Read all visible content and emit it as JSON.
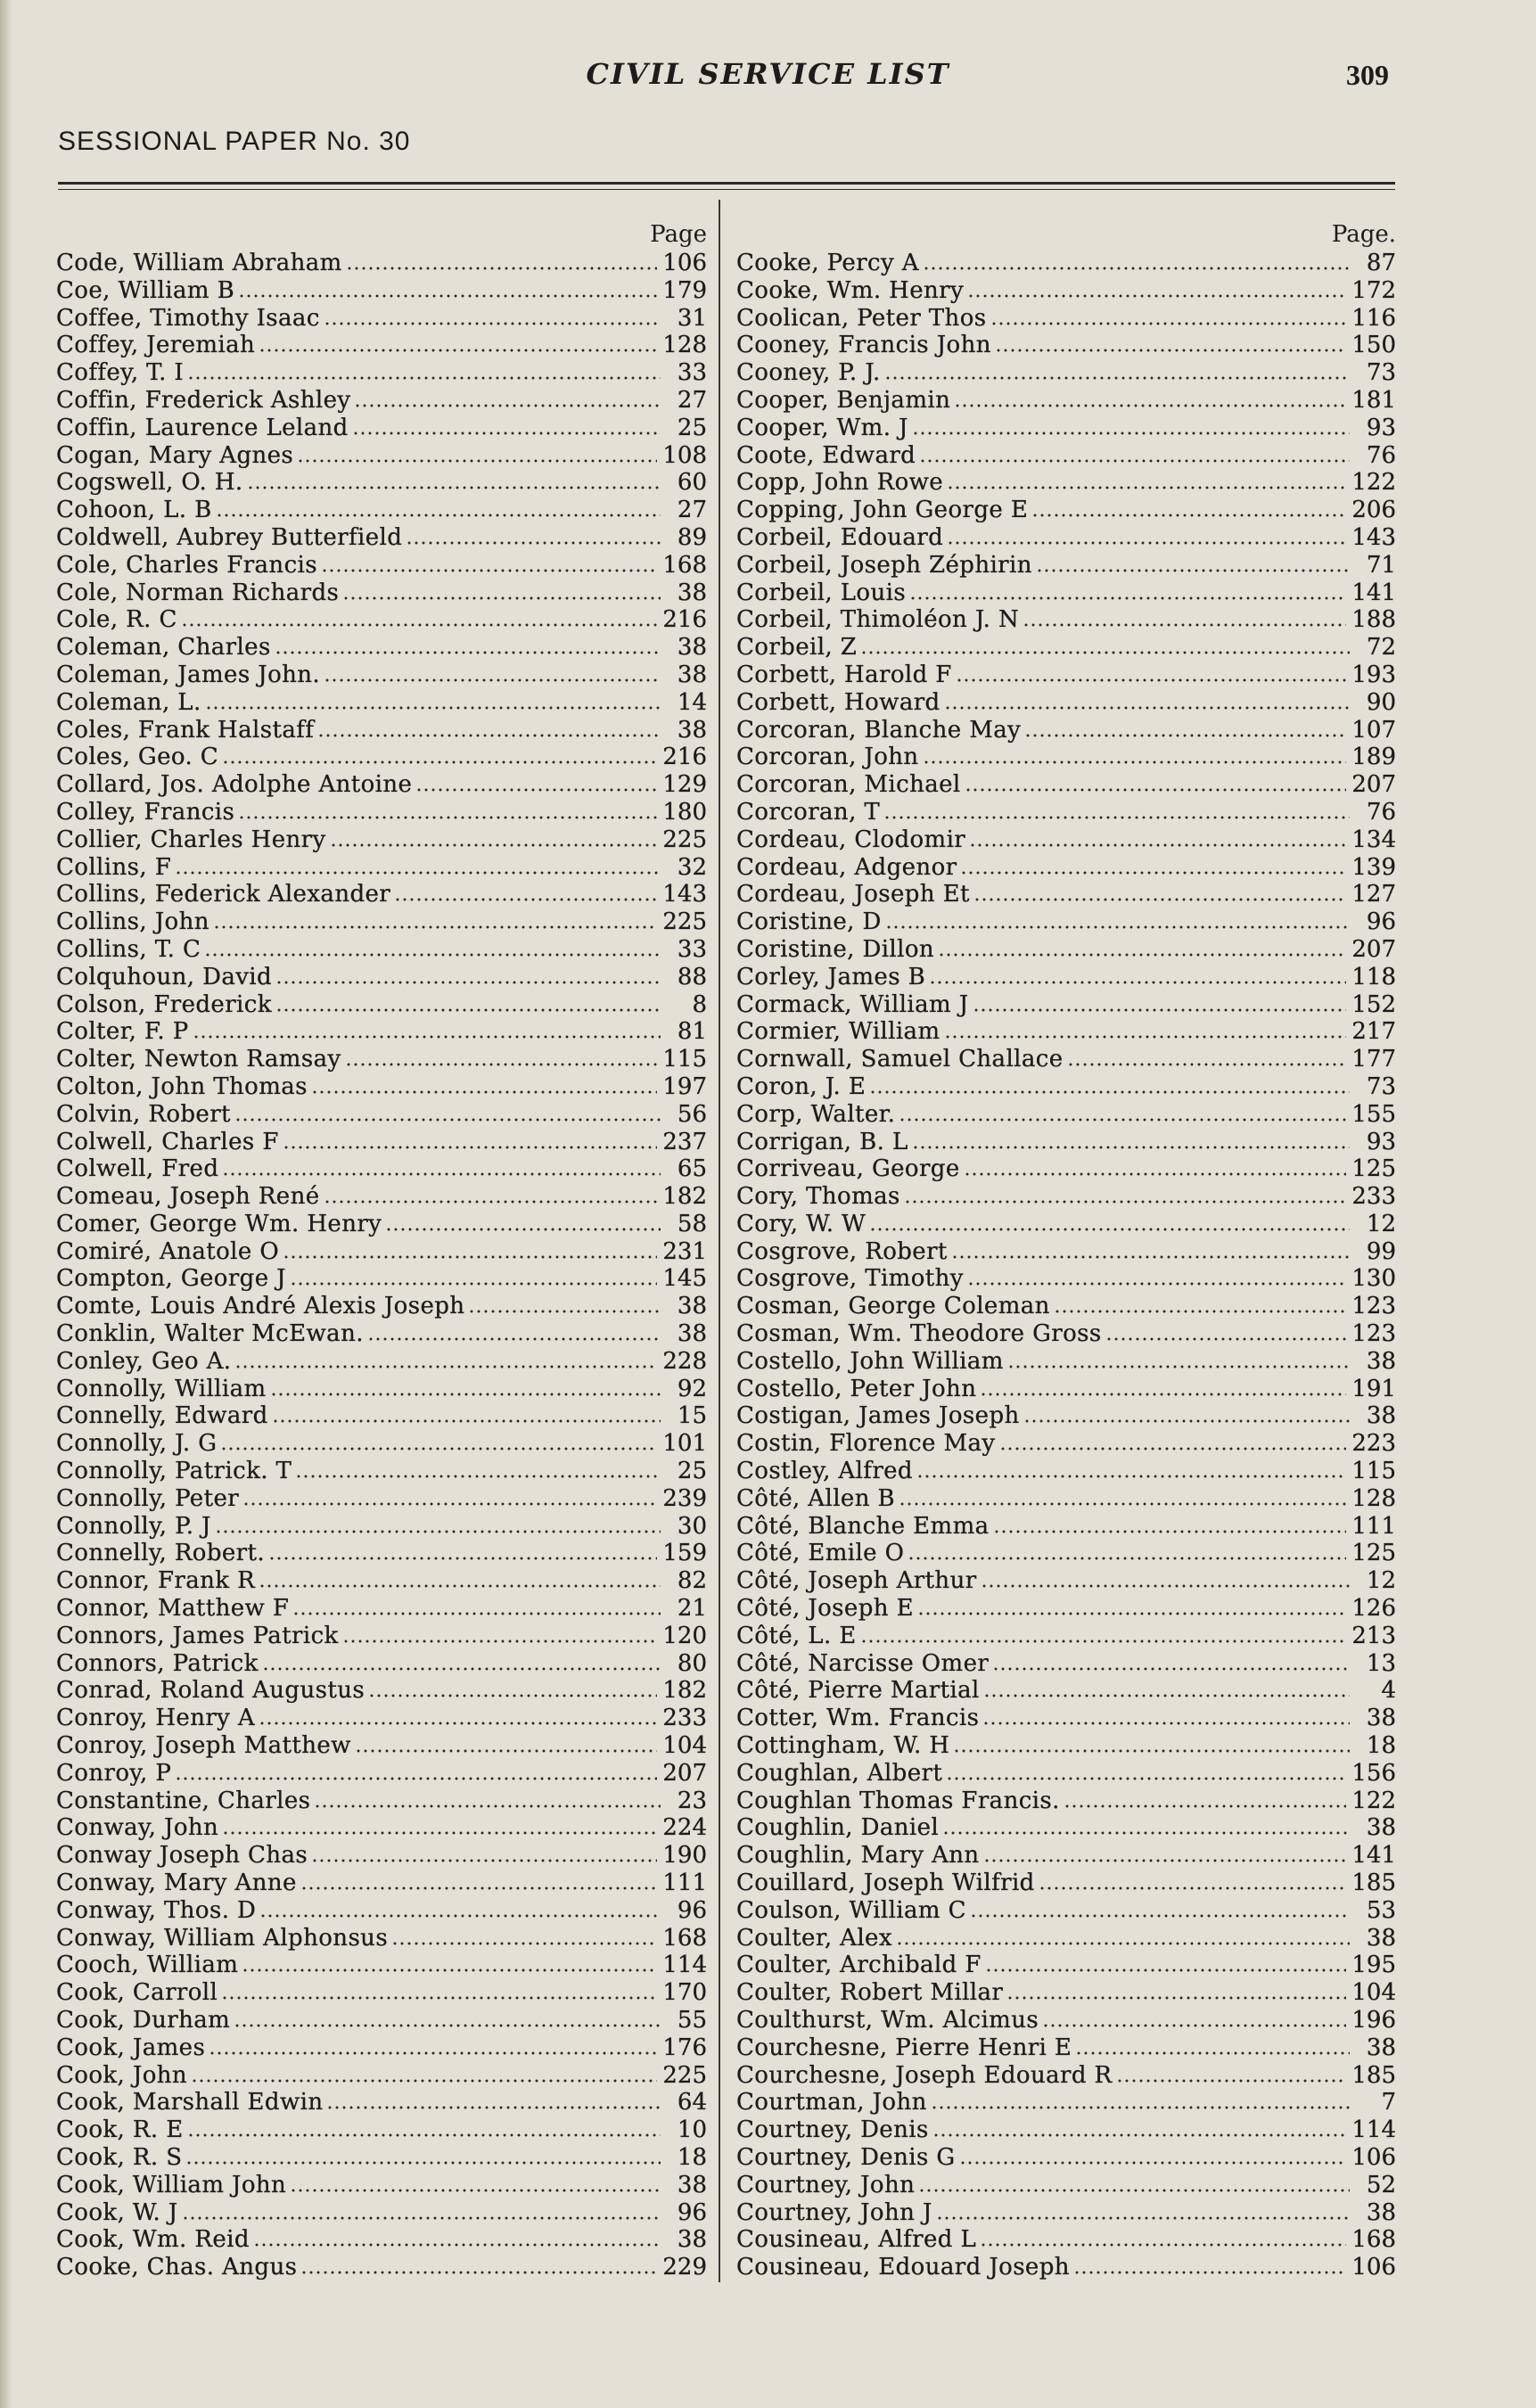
{
  "header": {
    "running_title": "CIVIL SERVICE LIST",
    "page_number": "309",
    "sessional_paper": "SESSIONAL PAPER No. 30"
  },
  "left_column": {
    "page_label": "Page",
    "entries": [
      {
        "name": "Code, William Abraham",
        "page": "106"
      },
      {
        "name": "Coe, William B",
        "page": "179"
      },
      {
        "name": "Coffee, Timothy Isaac",
        "page": "31"
      },
      {
        "name": "Coffey, Jeremiah",
        "page": "128"
      },
      {
        "name": "Coffey, T. I",
        "page": "33"
      },
      {
        "name": "Coffin, Frederick Ashley",
        "page": "27"
      },
      {
        "name": "Coffin, Laurence Leland",
        "page": "25"
      },
      {
        "name": "Cogan, Mary Agnes",
        "page": "108"
      },
      {
        "name": "Cogswell, O. H.",
        "page": "60"
      },
      {
        "name": "Cohoon, L. B",
        "page": "27"
      },
      {
        "name": "Coldwell, Aubrey Butterfield",
        "page": "89"
      },
      {
        "name": "Cole, Charles Francis",
        "page": "168"
      },
      {
        "name": "Cole, Norman Richards",
        "page": "38"
      },
      {
        "name": "Cole, R. C",
        "page": "216"
      },
      {
        "name": "Coleman, Charles",
        "page": "38"
      },
      {
        "name": "Coleman, James John.",
        "page": "38"
      },
      {
        "name": "Coleman, L.",
        "page": "14"
      },
      {
        "name": "Coles, Frank Halstaff",
        "page": "38"
      },
      {
        "name": "Coles, Geo. C",
        "page": "216"
      },
      {
        "name": "Collard, Jos. Adolphe Antoine",
        "page": "129"
      },
      {
        "name": "Colley, Francis",
        "page": "180"
      },
      {
        "name": "Collier, Charles Henry",
        "page": "225"
      },
      {
        "name": "Collins, F",
        "page": "32"
      },
      {
        "name": "Collins, Federick Alexander",
        "page": "143"
      },
      {
        "name": "Collins, John",
        "page": "225"
      },
      {
        "name": "Collins, T. C",
        "page": "33"
      },
      {
        "name": "Colquhoun, David",
        "page": "88"
      },
      {
        "name": "Colson, Frederick",
        "page": "8"
      },
      {
        "name": "Colter, F. P",
        "page": "81"
      },
      {
        "name": "Colter, Newton Ramsay",
        "page": "115"
      },
      {
        "name": "Colton, John Thomas",
        "page": "197"
      },
      {
        "name": "Colvin, Robert",
        "page": "56"
      },
      {
        "name": "Colwell, Charles F",
        "page": "237"
      },
      {
        "name": "Colwell, Fred",
        "page": "65"
      },
      {
        "name": "Comeau, Joseph René",
        "page": "182"
      },
      {
        "name": "Comer, George Wm. Henry",
        "page": "58"
      },
      {
        "name": "Comiré, Anatole O",
        "page": "231"
      },
      {
        "name": "Compton, George J",
        "page": "145"
      },
      {
        "name": "Comte, Louis André Alexis Joseph",
        "page": "38"
      },
      {
        "name": "Conklin, Walter McEwan.",
        "page": "38"
      },
      {
        "name": "Conley, Geo A.",
        "page": "228"
      },
      {
        "name": "Connolly, William",
        "page": "92"
      },
      {
        "name": "Connelly, Edward",
        "page": "15"
      },
      {
        "name": "Connolly, J. G",
        "page": "101"
      },
      {
        "name": "Connolly, Patrick. T",
        "page": "25"
      },
      {
        "name": "Connolly, Peter",
        "page": "239"
      },
      {
        "name": "Connolly, P. J",
        "page": "30"
      },
      {
        "name": "Connelly, Robert.",
        "page": "159"
      },
      {
        "name": "Connor, Frank R",
        "page": "82"
      },
      {
        "name": "Connor, Matthew F",
        "page": "21"
      },
      {
        "name": "Connors, James Patrick",
        "page": "120"
      },
      {
        "name": "Connors, Patrick",
        "page": "80"
      },
      {
        "name": "Conrad, Roland Augustus",
        "page": "182"
      },
      {
        "name": "Conroy, Henry A",
        "page": "233"
      },
      {
        "name": "Conroy, Joseph Matthew",
        "page": "104"
      },
      {
        "name": "Conroy, P",
        "page": "207"
      },
      {
        "name": "Constantine, Charles",
        "page": "23"
      },
      {
        "name": "Conway, John",
        "page": "224"
      },
      {
        "name": "Conway Joseph Chas",
        "page": "190"
      },
      {
        "name": "Conway, Mary Anne",
        "page": "111"
      },
      {
        "name": "Conway, Thos. D",
        "page": "96"
      },
      {
        "name": "Conway, William Alphonsus",
        "page": "168"
      },
      {
        "name": "Cooch, William",
        "page": "114"
      },
      {
        "name": "Cook, Carroll",
        "page": "170"
      },
      {
        "name": "Cook, Durham",
        "page": "55"
      },
      {
        "name": "Cook, James",
        "page": "176"
      },
      {
        "name": "Cook, John",
        "page": "225"
      },
      {
        "name": "Cook, Marshall Edwin",
        "page": "64"
      },
      {
        "name": "Cook, R. E",
        "page": "10"
      },
      {
        "name": "Cook, R. S",
        "page": "18"
      },
      {
        "name": "Cook, William John",
        "page": "38"
      },
      {
        "name": "Cook, W. J",
        "page": "96"
      },
      {
        "name": "Cook, Wm. Reid",
        "page": "38"
      },
      {
        "name": "Cooke, Chas. Angus",
        "page": "229"
      }
    ]
  },
  "right_column": {
    "page_label": "Page.",
    "entries": [
      {
        "name": "Cooke, Percy A",
        "page": "87"
      },
      {
        "name": "Cooke, Wm. Henry",
        "page": "172"
      },
      {
        "name": "Coolican, Peter Thos",
        "page": "116"
      },
      {
        "name": "Cooney, Francis John",
        "page": "150"
      },
      {
        "name": "Cooney, P. J.",
        "page": "73"
      },
      {
        "name": "Cooper, Benjamin",
        "page": "181"
      },
      {
        "name": "Cooper, Wm. J",
        "page": "93"
      },
      {
        "name": "Coote, Edward",
        "page": "76"
      },
      {
        "name": "Copp, John Rowe",
        "page": "122"
      },
      {
        "name": "Copping, John George E",
        "page": "206"
      },
      {
        "name": "Corbeil, Edouard",
        "page": "143"
      },
      {
        "name": "Corbeil, Joseph Zéphirin",
        "page": "71"
      },
      {
        "name": "Corbeil, Louis",
        "page": "141"
      },
      {
        "name": "Corbeil, Thimoléon J. N",
        "page": "188"
      },
      {
        "name": "Corbeil, Z",
        "page": "72"
      },
      {
        "name": "Corbett, Harold F",
        "page": "193"
      },
      {
        "name": "Corbett, Howard",
        "page": "90"
      },
      {
        "name": "Corcoran, Blanche May",
        "page": "107"
      },
      {
        "name": "Corcoran, John",
        "page": "189"
      },
      {
        "name": "Corcoran, Michael",
        "page": "207"
      },
      {
        "name": "Corcoran, T",
        "page": "76"
      },
      {
        "name": "Cordeau, Clodomir",
        "page": "134"
      },
      {
        "name": "Cordeau, Adgenor",
        "page": "139"
      },
      {
        "name": "Cordeau, Joseph Et",
        "page": "127"
      },
      {
        "name": "Coristine, D",
        "page": "96"
      },
      {
        "name": "Coristine, Dillon",
        "page": "207"
      },
      {
        "name": "Corley, James B",
        "page": "118"
      },
      {
        "name": "Cormack, William J",
        "page": "152"
      },
      {
        "name": "Cormier, William",
        "page": "217"
      },
      {
        "name": "Cornwall, Samuel Challace",
        "page": "177"
      },
      {
        "name": "Coron, J. E",
        "page": "73"
      },
      {
        "name": "Corp, Walter.",
        "page": "155"
      },
      {
        "name": "Corrigan, B. L",
        "page": "93"
      },
      {
        "name": "Corriveau, George",
        "page": "125"
      },
      {
        "name": "Cory, Thomas",
        "page": "233"
      },
      {
        "name": "Cory, W. W",
        "page": "12"
      },
      {
        "name": "Cosgrove, Robert",
        "page": "99"
      },
      {
        "name": "Cosgrove, Timothy",
        "page": "130"
      },
      {
        "name": "Cosman, George Coleman",
        "page": "123"
      },
      {
        "name": "Cosman, Wm. Theodore Gross",
        "page": "123"
      },
      {
        "name": "Costello, John William",
        "page": "38"
      },
      {
        "name": "Costello, Peter John",
        "page": "191"
      },
      {
        "name": "Costigan, James Joseph",
        "page": "38"
      },
      {
        "name": "Costin, Florence May",
        "page": "223"
      },
      {
        "name": "Costley, Alfred",
        "page": "115"
      },
      {
        "name": "Côté, Allen B",
        "page": "128"
      },
      {
        "name": "Côté, Blanche Emma",
        "page": "111"
      },
      {
        "name": "Côté, Emile O",
        "page": "125"
      },
      {
        "name": "Côté, Joseph Arthur",
        "page": "12"
      },
      {
        "name": "Côté, Joseph E",
        "page": "126"
      },
      {
        "name": "Côté, L. E",
        "page": "213"
      },
      {
        "name": "Côté, Narcisse Omer",
        "page": "13"
      },
      {
        "name": "Côté, Pierre Martial",
        "page": "4"
      },
      {
        "name": "Cotter, Wm. Francis",
        "page": "38"
      },
      {
        "name": "Cottingham, W. H",
        "page": "18"
      },
      {
        "name": "Coughlan, Albert",
        "page": "156"
      },
      {
        "name": "Coughlan Thomas Francis.",
        "page": "122"
      },
      {
        "name": "Coughlin, Daniel",
        "page": "38"
      },
      {
        "name": "Coughlin, Mary Ann",
        "page": "141"
      },
      {
        "name": "Couillard, Joseph Wilfrid",
        "page": "185"
      },
      {
        "name": "Coulson, William C",
        "page": "53"
      },
      {
        "name": "Coulter, Alex",
        "page": "38"
      },
      {
        "name": "Coulter, Archibald F",
        "page": "195"
      },
      {
        "name": "Coulter, Robert Millar",
        "page": "104"
      },
      {
        "name": "Coulthurst, Wm. Alcimus",
        "page": "196"
      },
      {
        "name": "Courchesne, Pierre Henri E",
        "page": "38"
      },
      {
        "name": "Courchesne, Joseph Edouard R",
        "page": "185"
      },
      {
        "name": "Courtman, John",
        "page": "7"
      },
      {
        "name": "Courtney, Denis",
        "page": "114"
      },
      {
        "name": "Courtney, Denis G",
        "page": "106"
      },
      {
        "name": "Courtney, John",
        "page": "52"
      },
      {
        "name": "Courtney, John J",
        "page": "38"
      },
      {
        "name": "Cousineau, Alfred L",
        "page": "168"
      },
      {
        "name": "Cousineau, Edouard Joseph",
        "page": "106"
      }
    ]
  }
}
